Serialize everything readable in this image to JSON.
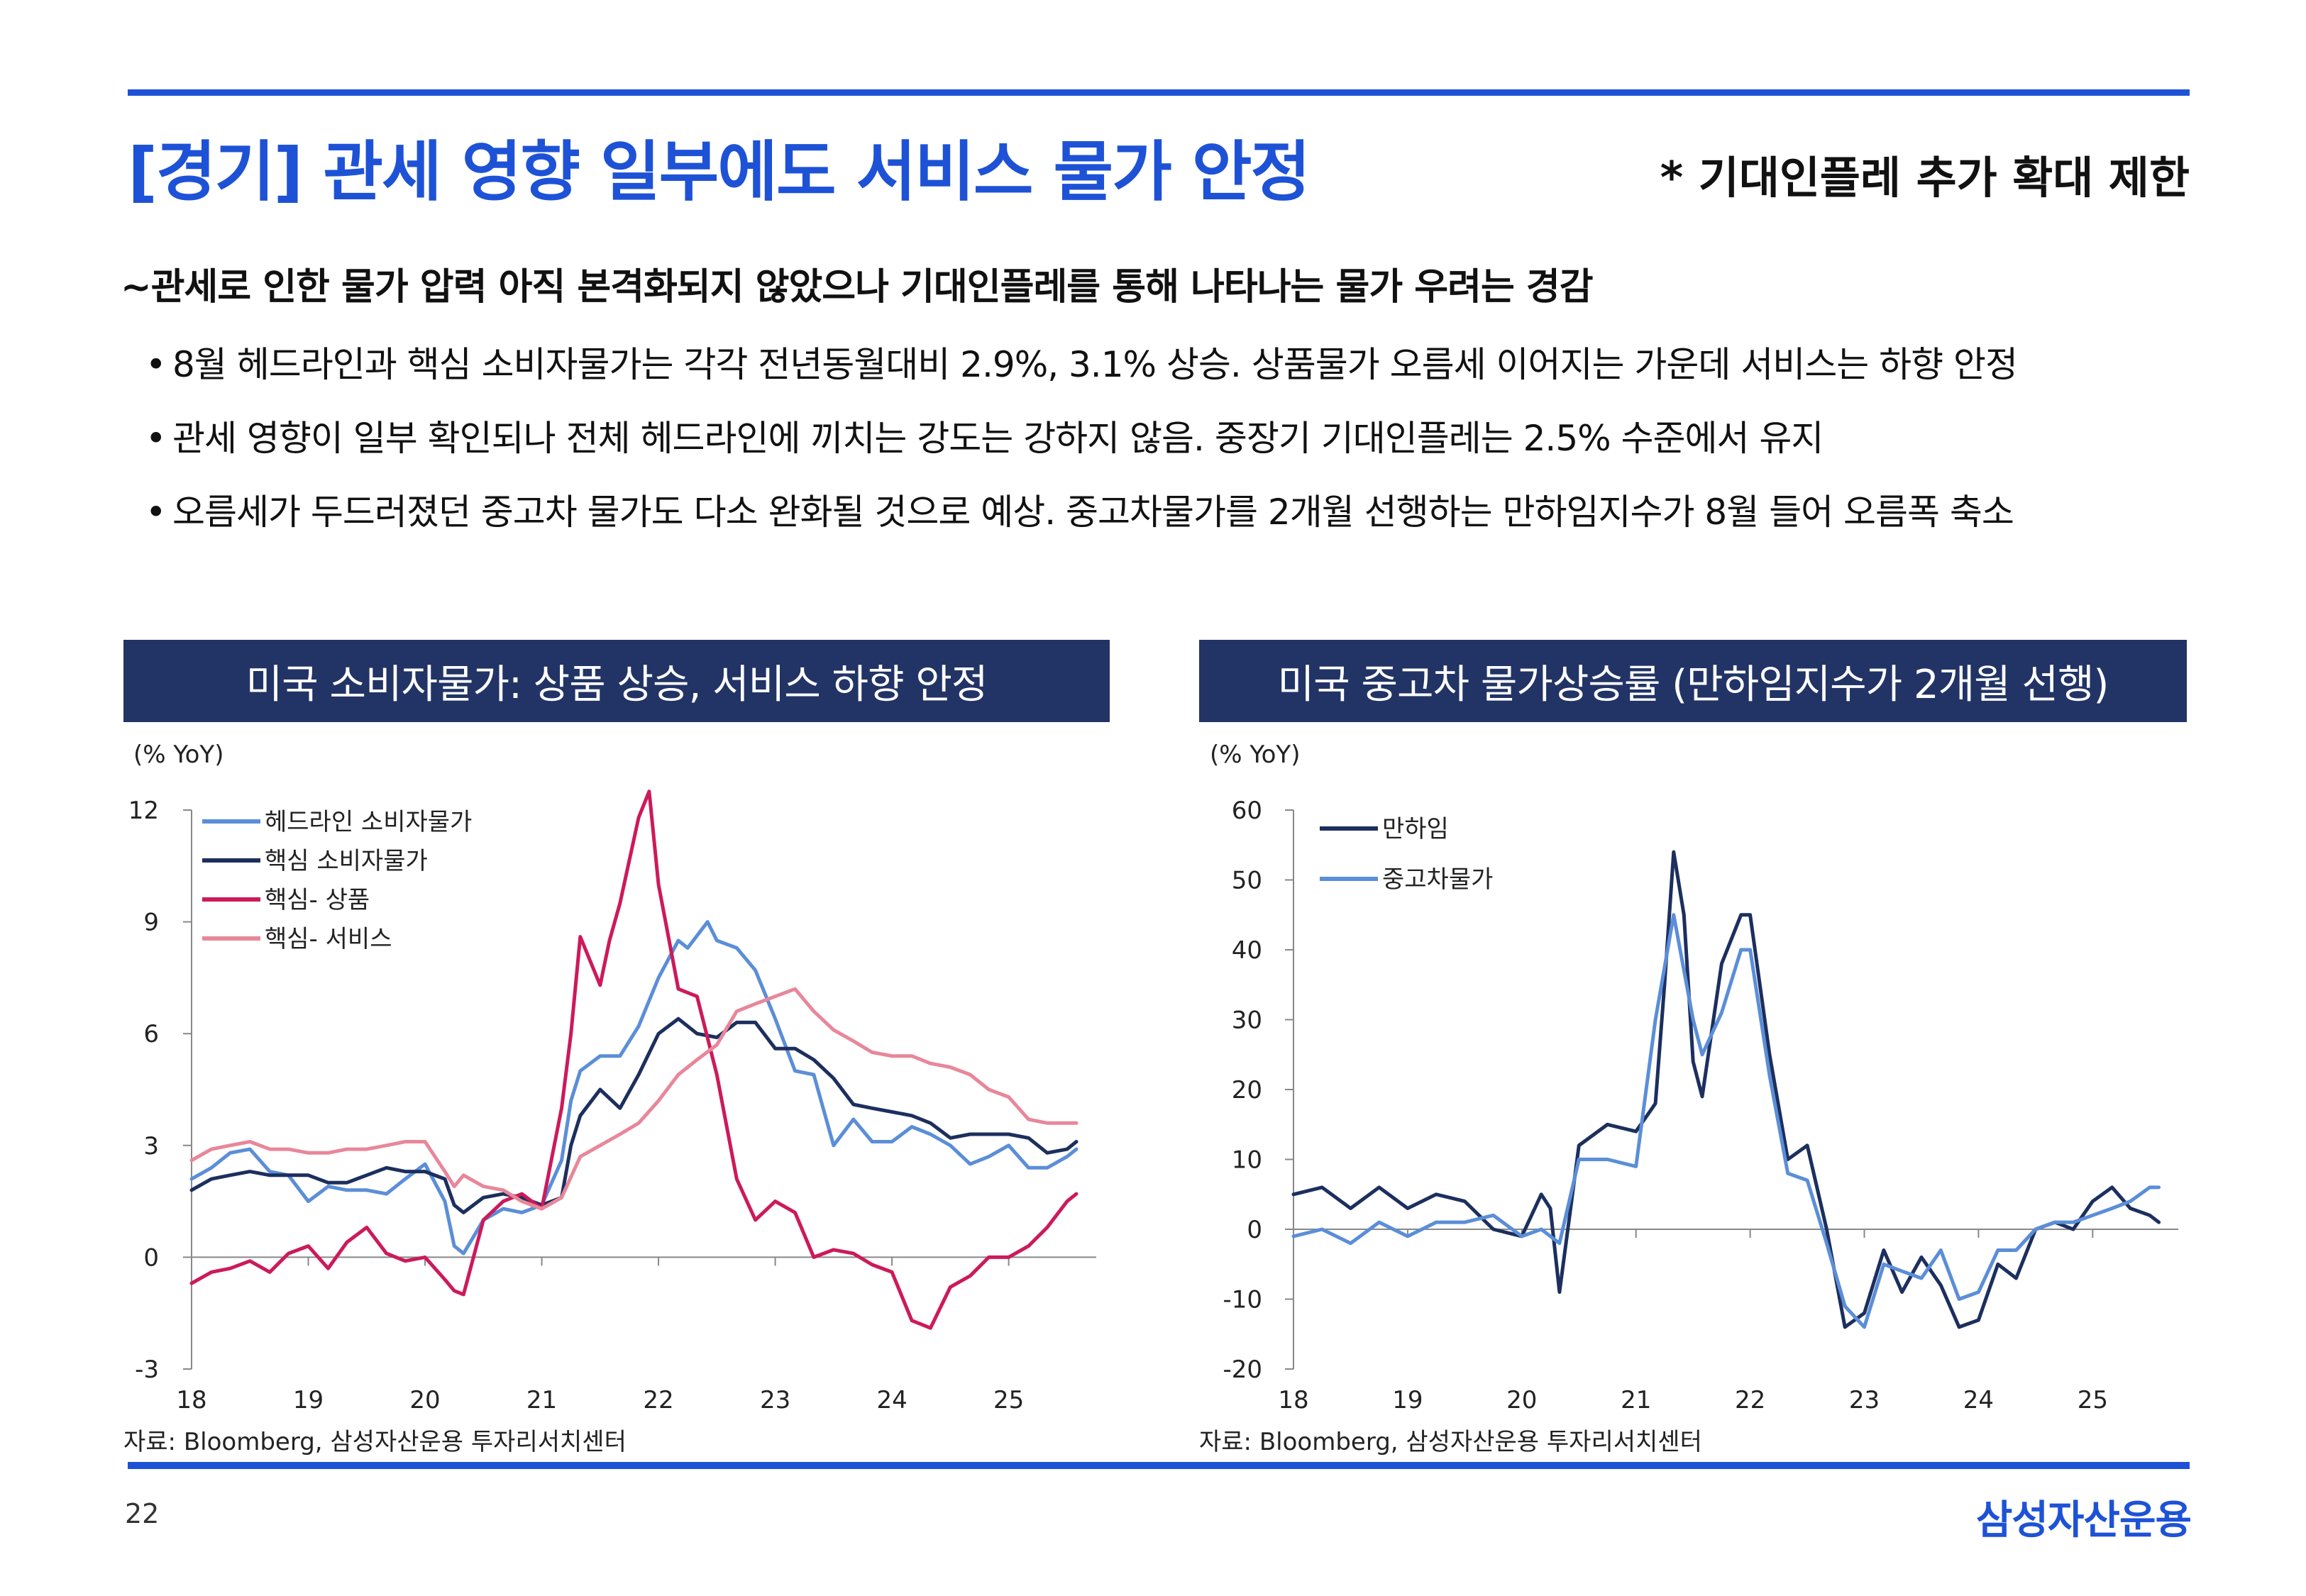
{
  "header": {
    "title": "[경기] 관세 영향 일부에도 서비스 물가 안정",
    "side_note": "* 기대인플레 추가 확대 제한"
  },
  "subtitle": "~관세로 인한 물가 압력 아직 본격화되지 않았으나 기대인플레를 통해 나타나는 물가 우려는 경감",
  "bullets": [
    "8월 헤드라인과 핵심 소비자물가는 각각 전년동월대비 2.9%, 3.1% 상승. 상품물가 오름세 이어지는 가운데 서비스는 하향 안정",
    "관세 영향이 일부 확인되나 전체 헤드라인에 끼치는 강도는 강하지 않음. 중장기 기대인플레는 2.5% 수준에서 유지",
    "오름세가 두드러졌던 중고차 물가도 다소 완화될 것으로 예상. 중고차물가를 2개월 선행하는 만하임지수가 8월 들어 오름폭 축소"
  ],
  "bullet_symbol": "•",
  "footer": {
    "page_number": "22",
    "logo": "삼성자산운용"
  },
  "colors": {
    "accent": "#1e52d6",
    "panel": "#223466"
  },
  "chart_data": [
    {
      "type": "line",
      "title": "미국 소비자물가: 상품 상승, 서비스 하향 안정",
      "unit_label": "(% YoY)",
      "source": "자료: Bloomberg, 삼성자산운용 투자리서치센터",
      "ylim": [
        -3,
        12
      ],
      "yticks": [
        -3,
        0,
        3,
        6,
        9,
        12
      ],
      "xlim": [
        2018.0,
        2025.75
      ],
      "xticks": [
        2018,
        2019,
        2020,
        2021,
        2022,
        2023,
        2024,
        2025
      ],
      "xtick_labels": [
        "18",
        "19",
        "20",
        "21",
        "22",
        "23",
        "24",
        "25"
      ],
      "legend_position": "top-left",
      "series": [
        {
          "name": "헤드라인 소비자물가",
          "color": "#5b8ed8",
          "x": [
            2018.0,
            2018.17,
            2018.33,
            2018.5,
            2018.67,
            2018.83,
            2019.0,
            2019.17,
            2019.33,
            2019.5,
            2019.67,
            2019.83,
            2020.0,
            2020.17,
            2020.25,
            2020.33,
            2020.5,
            2020.67,
            2020.83,
            2021.0,
            2021.17,
            2021.25,
            2021.33,
            2021.5,
            2021.67,
            2021.83,
            2022.0,
            2022.17,
            2022.25,
            2022.42,
            2022.5,
            2022.67,
            2022.83,
            2023.0,
            2023.17,
            2023.33,
            2023.5,
            2023.67,
            2023.83,
            2024.0,
            2024.17,
            2024.33,
            2024.5,
            2024.67,
            2024.83,
            2025.0,
            2025.17,
            2025.33,
            2025.5,
            2025.58
          ],
          "values": [
            2.1,
            2.4,
            2.8,
            2.9,
            2.3,
            2.2,
            1.5,
            1.9,
            1.8,
            1.8,
            1.7,
            2.1,
            2.5,
            1.5,
            0.3,
            0.1,
            1.0,
            1.3,
            1.2,
            1.4,
            2.6,
            4.2,
            5.0,
            5.4,
            5.4,
            6.2,
            7.5,
            8.5,
            8.3,
            9.0,
            8.5,
            8.3,
            7.7,
            6.4,
            5.0,
            4.9,
            3.0,
            3.7,
            3.1,
            3.1,
            3.5,
            3.3,
            3.0,
            2.5,
            2.7,
            3.0,
            2.4,
            2.4,
            2.7,
            2.9
          ]
        },
        {
          "name": "핵심 소비자물가",
          "color": "#1c2f5e",
          "x": [
            2018.0,
            2018.17,
            2018.33,
            2018.5,
            2018.67,
            2018.83,
            2019.0,
            2019.17,
            2019.33,
            2019.5,
            2019.67,
            2019.83,
            2020.0,
            2020.17,
            2020.25,
            2020.33,
            2020.5,
            2020.67,
            2020.83,
            2021.0,
            2021.17,
            2021.25,
            2021.33,
            2021.5,
            2021.67,
            2021.83,
            2022.0,
            2022.17,
            2022.33,
            2022.5,
            2022.67,
            2022.83,
            2023.0,
            2023.17,
            2023.33,
            2023.5,
            2023.67,
            2023.83,
            2024.0,
            2024.17,
            2024.33,
            2024.5,
            2024.67,
            2024.83,
            2025.0,
            2025.17,
            2025.33,
            2025.5,
            2025.58
          ],
          "values": [
            1.8,
            2.1,
            2.2,
            2.3,
            2.2,
            2.2,
            2.2,
            2.0,
            2.0,
            2.2,
            2.4,
            2.3,
            2.3,
            2.1,
            1.4,
            1.2,
            1.6,
            1.7,
            1.6,
            1.4,
            1.6,
            3.0,
            3.8,
            4.5,
            4.0,
            4.9,
            6.0,
            6.4,
            6.0,
            5.9,
            6.3,
            6.3,
            5.6,
            5.6,
            5.3,
            4.8,
            4.1,
            4.0,
            3.9,
            3.8,
            3.6,
            3.2,
            3.3,
            3.3,
            3.3,
            3.2,
            2.8,
            2.9,
            3.1
          ]
        },
        {
          "name": "핵심- 상품",
          "color": "#cc1a5a",
          "x": [
            2018.0,
            2018.17,
            2018.33,
            2018.5,
            2018.67,
            2018.83,
            2019.0,
            2019.17,
            2019.33,
            2019.5,
            2019.67,
            2019.83,
            2020.0,
            2020.17,
            2020.25,
            2020.33,
            2020.5,
            2020.67,
            2020.83,
            2021.0,
            2021.17,
            2021.25,
            2021.33,
            2021.5,
            2021.58,
            2021.67,
            2021.83,
            2021.92,
            2022.0,
            2022.17,
            2022.33,
            2022.5,
            2022.67,
            2022.83,
            2023.0,
            2023.17,
            2023.33,
            2023.5,
            2023.67,
            2023.83,
            2024.0,
            2024.17,
            2024.33,
            2024.5,
            2024.67,
            2024.83,
            2025.0,
            2025.17,
            2025.33,
            2025.5,
            2025.58
          ],
          "values": [
            -0.7,
            -0.4,
            -0.3,
            -0.1,
            -0.4,
            0.1,
            0.3,
            -0.3,
            0.4,
            0.8,
            0.1,
            -0.1,
            0.0,
            -0.6,
            -0.9,
            -1.0,
            1.0,
            1.5,
            1.7,
            1.3,
            4.0,
            6.0,
            8.6,
            7.3,
            8.5,
            9.5,
            11.8,
            12.5,
            10.0,
            7.2,
            7.0,
            4.9,
            2.1,
            1.0,
            1.5,
            1.2,
            0.0,
            0.2,
            0.1,
            -0.2,
            -0.4,
            -1.7,
            -1.9,
            -0.8,
            -0.5,
            0.0,
            0.0,
            0.3,
            0.8,
            1.5,
            1.7
          ]
        },
        {
          "name": "핵심- 서비스",
          "color": "#e8879a",
          "x": [
            2018.0,
            2018.17,
            2018.33,
            2018.5,
            2018.67,
            2018.83,
            2019.0,
            2019.17,
            2019.33,
            2019.5,
            2019.67,
            2019.83,
            2020.0,
            2020.17,
            2020.25,
            2020.33,
            2020.5,
            2020.67,
            2020.83,
            2021.0,
            2021.17,
            2021.33,
            2021.5,
            2021.67,
            2021.83,
            2022.0,
            2022.17,
            2022.33,
            2022.5,
            2022.67,
            2022.83,
            2023.0,
            2023.17,
            2023.33,
            2023.5,
            2023.67,
            2023.83,
            2024.0,
            2024.17,
            2024.33,
            2024.5,
            2024.67,
            2024.83,
            2025.0,
            2025.17,
            2025.33,
            2025.5,
            2025.58
          ],
          "values": [
            2.6,
            2.9,
            3.0,
            3.1,
            2.9,
            2.9,
            2.8,
            2.8,
            2.9,
            2.9,
            3.0,
            3.1,
            3.1,
            2.3,
            1.9,
            2.2,
            1.9,
            1.8,
            1.5,
            1.3,
            1.6,
            2.7,
            3.0,
            3.3,
            3.6,
            4.2,
            4.9,
            5.3,
            5.7,
            6.6,
            6.8,
            7.0,
            7.2,
            6.6,
            6.1,
            5.8,
            5.5,
            5.4,
            5.4,
            5.2,
            5.1,
            4.9,
            4.5,
            4.3,
            3.7,
            3.6,
            3.6,
            3.6
          ]
        }
      ]
    },
    {
      "type": "line",
      "title": "미국 중고차 물가상승률 (만하임지수가 2개월 선행)",
      "unit_label": "(% YoY)",
      "source": "자료: Bloomberg, 삼성자산운용 투자리서치센터",
      "ylim": [
        -20,
        60
      ],
      "yticks": [
        -20,
        -10,
        0,
        10,
        20,
        30,
        40,
        50,
        60
      ],
      "xlim": [
        2018.0,
        2025.75
      ],
      "xticks": [
        2018,
        2019,
        2020,
        2021,
        2022,
        2023,
        2024,
        2025
      ],
      "xtick_labels": [
        "18",
        "19",
        "20",
        "21",
        "22",
        "23",
        "24",
        "25"
      ],
      "legend_position": "top-left",
      "series": [
        {
          "name": "만하임",
          "color": "#1c2f5e",
          "x": [
            2018.0,
            2018.25,
            2018.5,
            2018.75,
            2019.0,
            2019.25,
            2019.5,
            2019.75,
            2020.0,
            2020.17,
            2020.25,
            2020.33,
            2020.5,
            2020.75,
            2021.0,
            2021.17,
            2021.25,
            2021.33,
            2021.42,
            2021.5,
            2021.58,
            2021.75,
            2021.92,
            2022.0,
            2022.17,
            2022.33,
            2022.5,
            2022.67,
            2022.83,
            2023.0,
            2023.17,
            2023.33,
            2023.5,
            2023.67,
            2023.83,
            2024.0,
            2024.17,
            2024.33,
            2024.5,
            2024.67,
            2024.83,
            2025.0,
            2025.17,
            2025.33,
            2025.5,
            2025.58
          ],
          "values": [
            5,
            6,
            3,
            6,
            3,
            5,
            4,
            0,
            -1,
            5,
            3,
            -9,
            12,
            15,
            14,
            18,
            35,
            54,
            45,
            24,
            19,
            38,
            45,
            45,
            25,
            10,
            12,
            0,
            -14,
            -12,
            -3,
            -9,
            -4,
            -8,
            -14,
            -13,
            -5,
            -7,
            0,
            1,
            0,
            4,
            6,
            3,
            2,
            1
          ]
        },
        {
          "name": "중고차물가",
          "color": "#5b8ed8",
          "x": [
            2018.0,
            2018.25,
            2018.5,
            2018.75,
            2019.0,
            2019.25,
            2019.5,
            2019.75,
            2020.0,
            2020.17,
            2020.33,
            2020.5,
            2020.75,
            2021.0,
            2021.17,
            2021.33,
            2021.5,
            2021.58,
            2021.75,
            2021.92,
            2022.0,
            2022.17,
            2022.33,
            2022.5,
            2022.67,
            2022.83,
            2023.0,
            2023.17,
            2023.33,
            2023.5,
            2023.67,
            2023.83,
            2024.0,
            2024.17,
            2024.33,
            2024.5,
            2024.67,
            2024.83,
            2025.0,
            2025.17,
            2025.33,
            2025.5,
            2025.58
          ],
          "values": [
            -1,
            0,
            -2,
            1,
            -1,
            1,
            1,
            2,
            -1,
            0,
            -2,
            10,
            10,
            9,
            30,
            45,
            30,
            25,
            31,
            40,
            40,
            22,
            8,
            7,
            -2,
            -11,
            -14,
            -5,
            -6,
            -7,
            -3,
            -10,
            -9,
            -3,
            -3,
            0,
            1,
            1,
            2,
            3,
            4,
            6,
            6
          ]
        }
      ]
    }
  ]
}
